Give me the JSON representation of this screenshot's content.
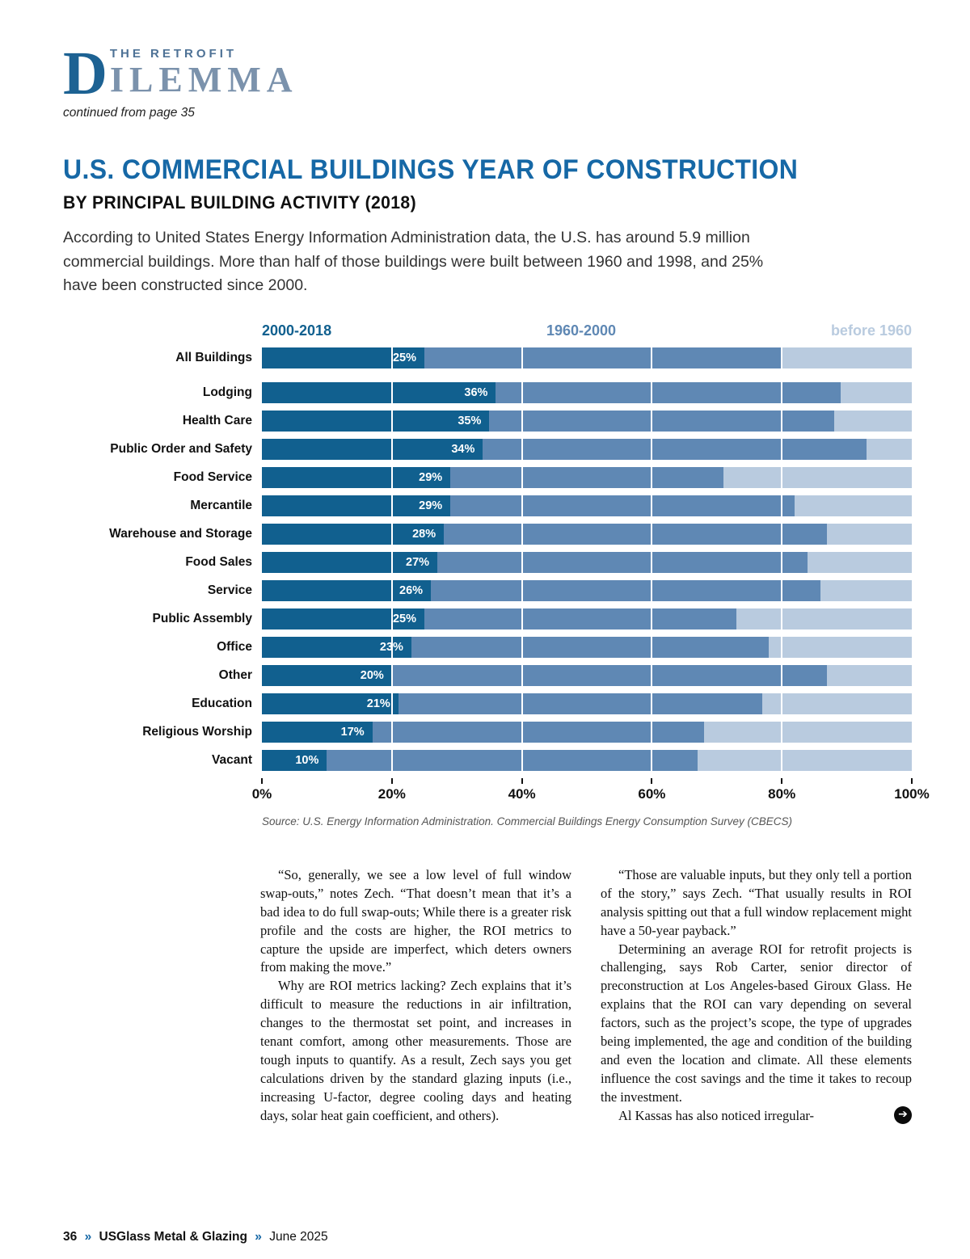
{
  "logo": {
    "initial": "D",
    "top_line": "THE RETROFIT",
    "main_line": "ILEMMA",
    "continued": "continued from page 35"
  },
  "headline": {
    "title": "U.S. COMMERCIAL BUILDINGS YEAR OF CONSTRUCTION",
    "subtitle": "BY PRINCIPAL BUILDING ACTIVITY (2018)",
    "accent_color": "#1668a6"
  },
  "intro": "According to United States Energy Information Administration data, the U.S. has around 5.9 million commercial buildings. More than half of those buildings were built between 1960 and 1998, and 25% have been constructed since 2000.",
  "chart_data": {
    "type": "bar",
    "stacked": true,
    "orientation": "horizontal",
    "legend": [
      {
        "label": "2000-2018",
        "color": "#11608f"
      },
      {
        "label": "1960-2000",
        "color": "#5f88b4"
      },
      {
        "label": "before 1960",
        "color": "#b9cbdf"
      }
    ],
    "categories": [
      "All Buildings",
      "Lodging",
      "Health Care",
      "Public Order and Safety",
      "Food Service",
      "Mercantile",
      "Warehouse and Storage",
      "Food Sales",
      "Service",
      "Public Assembly",
      "Office",
      "Other",
      "Education",
      "Religious Worship",
      "Vacant"
    ],
    "series": [
      {
        "name": "2000-2018",
        "values": [
          25,
          36,
          35,
          34,
          29,
          29,
          28,
          27,
          26,
          25,
          23,
          20,
          21,
          17,
          10
        ]
      },
      {
        "name": "1960-2000",
        "values": [
          55,
          53,
          53,
          59,
          42,
          53,
          59,
          57,
          60,
          48,
          55,
          67,
          56,
          51,
          57
        ]
      },
      {
        "name": "before 1960",
        "values": [
          20,
          11,
          12,
          7,
          29,
          18,
          13,
          16,
          14,
          27,
          22,
          13,
          23,
          32,
          33
        ]
      }
    ],
    "bar_labels": [
      "25%",
      "36%",
      "35%",
      "34%",
      "29%",
      "29%",
      "28%",
      "27%",
      "26%",
      "25%",
      "23%",
      "20%",
      "21%",
      "17%",
      "10%"
    ],
    "x_ticks": [
      "0%",
      "20%",
      "40%",
      "60%",
      "80%",
      "100%"
    ],
    "xlim": [
      0,
      100
    ],
    "grid": true,
    "legend_position": "top",
    "source": "Source: U.S. Energy Information Administration. Commercial Buildings Energy Consumption Survey (CBECS)"
  },
  "article": {
    "col1": [
      "“So, generally, we see a low level of full window swap-outs,” notes Zech. “That doesn’t mean that it’s a bad idea to do full swap-outs; While there is a greater risk profile and the costs are higher, the ROI metrics to capture the upside are imperfect, which deters owners from making the move.”",
      "Why are ROI metrics lacking? Zech explains that it’s difficult to measure the reductions in air infiltration, changes to the thermostat set point, and increases in tenant comfort, among other measurements. Those are tough inputs to quantify. As a result, Zech says you get calculations driven by the standard glazing inputs (i.e., increasing U-factor, degree cooling days and heating days, solar heat gain coefficient, and others)."
    ],
    "col2": [
      "“Those are valuable inputs, but they only tell a portion of the story,” says Zech. “That usually results in ROI analysis spitting out that a full window replacement might have a 50-year payback.”",
      "Determining an average ROI for retrofit projects is challenging, says Rob Carter, senior director of preconstruction at Los Angeles-based Giroux Glass. He explains that the ROI can vary depending on several factors, such as the project’s scope, the type of upgrades being implemented, the age and condition of the building and even the location and climate. All these elements influence the cost savings and the time it takes to recoup the investment.",
      "Al Kassas has also noticed irregular-"
    ],
    "next_arrow": "➔"
  },
  "footer": {
    "page_num": "36",
    "sep": "»",
    "brand": "USGlass Metal & Glazing",
    "issue": "June 2025"
  }
}
